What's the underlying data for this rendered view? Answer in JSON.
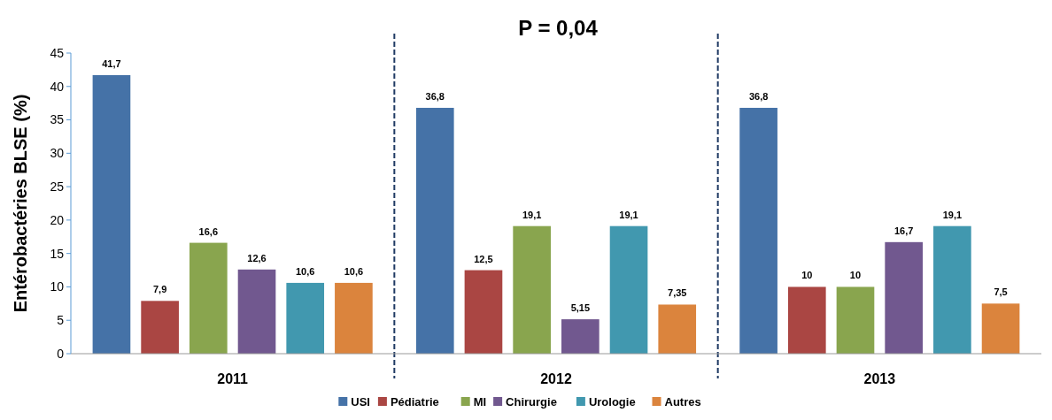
{
  "chart_data": {
    "type": "bar",
    "title": "P = 0,04",
    "ylabel": "Entérobactéries BLSE (%)",
    "categories": [
      "2011",
      "2012",
      "2013"
    ],
    "series": [
      {
        "name": "USI",
        "color": "#4572a7",
        "values": [
          41.7,
          36.8,
          36.8
        ],
        "value_labels": [
          "41,7",
          "36,8",
          "36,8"
        ]
      },
      {
        "name": "Pédiatrie",
        "color": "#aa4643",
        "values": [
          7.9,
          12.5,
          10
        ],
        "value_labels": [
          "7,9",
          "12,5",
          "10"
        ]
      },
      {
        "name": "MI",
        "color": "#89a54e",
        "values": [
          16.6,
          19.1,
          10
        ],
        "value_labels": [
          "16,6",
          "19,1",
          "10"
        ]
      },
      {
        "name": "Chirurgie",
        "color": "#71588f",
        "values": [
          12.6,
          5.15,
          16.7
        ],
        "value_labels": [
          "12,6",
          "5,15",
          "16,7"
        ]
      },
      {
        "name": "Urologie",
        "color": "#4198af",
        "values": [
          10.6,
          19.1,
          19.1
        ],
        "value_labels": [
          "10,6",
          "19,1",
          "19,1"
        ]
      },
      {
        "name": "Autres",
        "color": "#db843d",
        "values": [
          10.6,
          7.35,
          7.5
        ],
        "value_labels": [
          "10,6",
          "7,35",
          "7,5"
        ]
      }
    ],
    "ylim": [
      0,
      45
    ],
    "yticks": [
      0,
      5,
      10,
      15,
      20,
      25,
      30,
      35,
      40,
      45
    ],
    "grid": false,
    "legend": "bottom"
  }
}
